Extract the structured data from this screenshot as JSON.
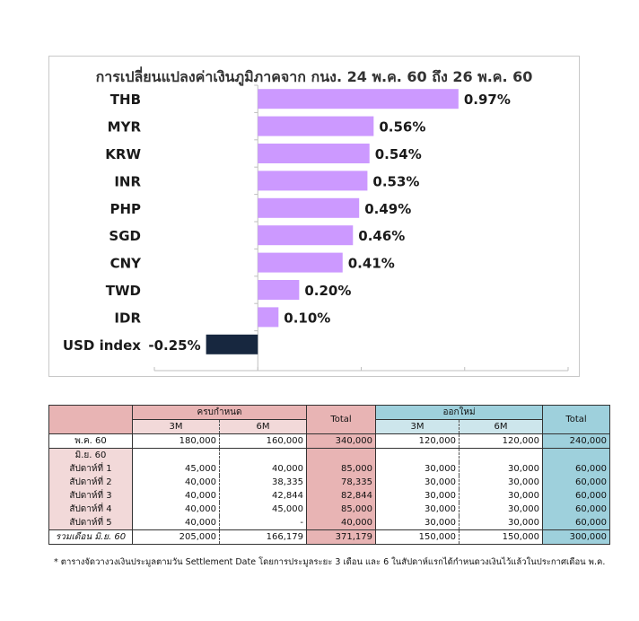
{
  "chart_data": {
    "type": "bar",
    "orientation": "horizontal",
    "title": "การเปลี่ยนแปลงค่าเงินภูมิภาคจาก กนง. 24 พ.ค. 60 ถึง 26 พ.ค. 60",
    "categories": [
      "THB",
      "MYR",
      "KRW",
      "INR",
      "PHP",
      "SGD",
      "CNY",
      "TWD",
      "IDR",
      "USD index"
    ],
    "values": [
      0.97,
      0.56,
      0.54,
      0.53,
      0.49,
      0.46,
      0.41,
      0.2,
      0.1,
      -0.25
    ],
    "value_labels": [
      "0.97%",
      "0.56%",
      "0.54%",
      "0.53%",
      "0.49%",
      "0.46%",
      "0.41%",
      "0.20%",
      "0.10%",
      "-0.25%"
    ],
    "xlim": [
      -0.5,
      1.5
    ],
    "colors": {
      "positive": "#cc99ff",
      "negative": "#17273f",
      "gridline": "#bfbfbf"
    },
    "grid": false,
    "legend": "none"
  },
  "table": {
    "header": {
      "matured": "ครบกำหนด",
      "new_issue": "ออกใหม่",
      "total": "Total",
      "m3": "3M",
      "m6": "6M"
    },
    "rows": [
      {
        "label": "พ.ค. 60",
        "a": "180,000",
        "b": "160,000",
        "t1": "340,000",
        "c": "120,000",
        "d": "120,000",
        "t2": "240,000"
      },
      {
        "label": "มิ.ย. 60",
        "a": "",
        "b": "",
        "t1": "",
        "c": "",
        "d": "",
        "t2": ""
      },
      {
        "label": "สัปดาห์ที่ 1",
        "a": "45,000",
        "b": "40,000",
        "t1": "85,000",
        "c": "30,000",
        "d": "30,000",
        "t2": "60,000"
      },
      {
        "label": "สัปดาห์ที่ 2",
        "a": "40,000",
        "b": "38,335",
        "t1": "78,335",
        "c": "30,000",
        "d": "30,000",
        "t2": "60,000"
      },
      {
        "label": "สัปดาห์ที่ 3",
        "a": "40,000",
        "b": "42,844",
        "t1": "82,844",
        "c": "30,000",
        "d": "30,000",
        "t2": "60,000"
      },
      {
        "label": "สัปดาห์ที่ 4",
        "a": "40,000",
        "b": "45,000",
        "t1": "85,000",
        "c": "30,000",
        "d": "30,000",
        "t2": "60,000"
      },
      {
        "label": "สัปดาห์ที่ 5",
        "a": "40,000",
        "b": "-",
        "t1": "40,000",
        "c": "30,000",
        "d": "30,000",
        "t2": "60,000"
      }
    ],
    "total_row": {
      "label": "รวมเดือน มิ.ย. 60",
      "a": "205,000",
      "b": "166,179",
      "t1": "371,179",
      "c": "150,000",
      "d": "150,000",
      "t2": "300,000"
    },
    "footnote": "* ตารางจัดวางวงเงินประมูลตามวัน Settlement Date โดยการประมูลระยะ 3 เดือน และ 6 ในสัปดาห์แรกได้กำหนดวงเงินไว้แล้วในประกาศเดือน พ.ค."
  }
}
